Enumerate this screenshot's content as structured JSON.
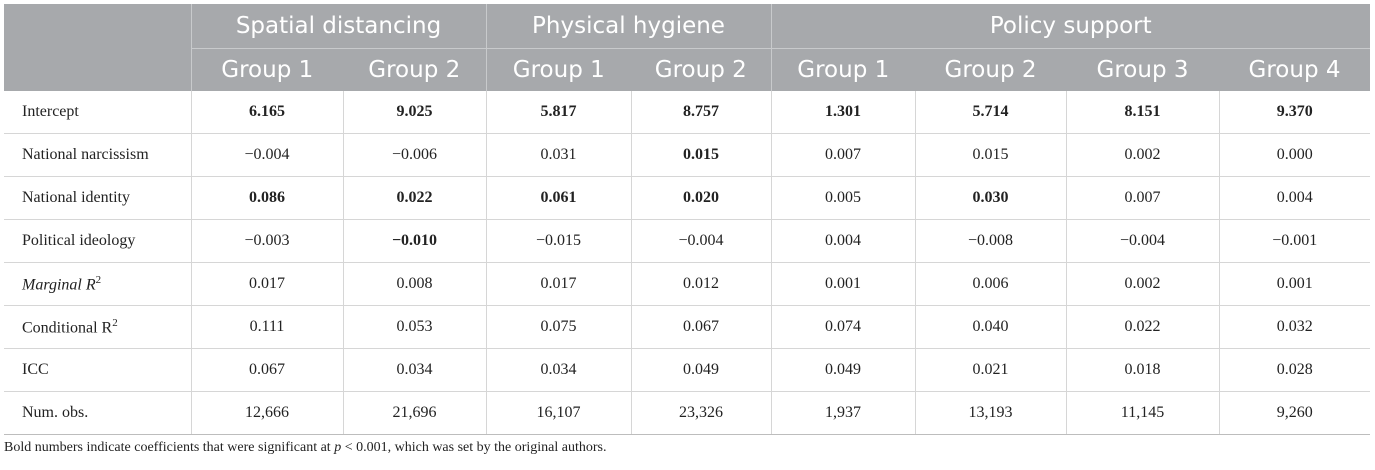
{
  "header": {
    "groups": [
      "Spatial distancing",
      "Physical hygiene",
      "Policy support"
    ],
    "subheaders": [
      "Group 1",
      "Group 2",
      "Group 1",
      "Group 2",
      "Group 1",
      "Group 2",
      "Group 3",
      "Group 4"
    ]
  },
  "rows": [
    {
      "label": "Intercept",
      "values": [
        "6.165",
        "9.025",
        "5.817",
        "8.757",
        "1.301",
        "5.714",
        "8.151",
        "9.370"
      ],
      "bold": [
        true,
        true,
        true,
        true,
        true,
        true,
        true,
        true
      ]
    },
    {
      "label": "National narcissism",
      "values": [
        "−0.004",
        "−0.006",
        "0.031",
        "0.015",
        "0.007",
        "0.015",
        "0.002",
        "0.000"
      ],
      "bold": [
        false,
        false,
        false,
        true,
        false,
        false,
        false,
        false
      ]
    },
    {
      "label": "National identity",
      "values": [
        "0.086",
        "0.022",
        "0.061",
        "0.020",
        "0.005",
        "0.030",
        "0.007",
        "0.004"
      ],
      "bold": [
        true,
        true,
        true,
        true,
        false,
        true,
        false,
        false
      ]
    },
    {
      "label": "Political ideology",
      "values": [
        "−0.003",
        "−0.010",
        "−0.015",
        "−0.004",
        "0.004",
        "−0.008",
        "−0.004",
        "−0.001"
      ],
      "bold": [
        false,
        true,
        false,
        false,
        false,
        false,
        false,
        false
      ]
    },
    {
      "label": "Marginal R",
      "label_sup": "2",
      "label_italic": true,
      "values": [
        "0.017",
        "0.008",
        "0.017",
        "0.012",
        "0.001",
        "0.006",
        "0.002",
        "0.001"
      ],
      "bold": [
        false,
        false,
        false,
        false,
        false,
        false,
        false,
        false
      ]
    },
    {
      "label": "Conditional R",
      "label_sup": "2",
      "label_italic": false,
      "values": [
        "0.111",
        "0.053",
        "0.075",
        "0.067",
        "0.074",
        "0.040",
        "0.022",
        "0.032"
      ],
      "bold": [
        false,
        false,
        false,
        false,
        false,
        false,
        false,
        false
      ]
    },
    {
      "label": "ICC",
      "values": [
        "0.067",
        "0.034",
        "0.034",
        "0.049",
        "0.049",
        "0.021",
        "0.018",
        "0.028"
      ],
      "bold": [
        false,
        false,
        false,
        false,
        false,
        false,
        false,
        false
      ]
    },
    {
      "label": "Num. obs.",
      "values": [
        "12,666",
        "21,696",
        "16,107",
        "23,326",
        "1,937",
        "13,193",
        "11,145",
        "9,260"
      ],
      "bold": [
        false,
        false,
        false,
        false,
        false,
        false,
        false,
        false
      ]
    }
  ],
  "note": {
    "before": "Bold numbers indicate coefficients that were significant at ",
    "p": "p",
    "after": " < 0.001, which was set by the original authors."
  }
}
